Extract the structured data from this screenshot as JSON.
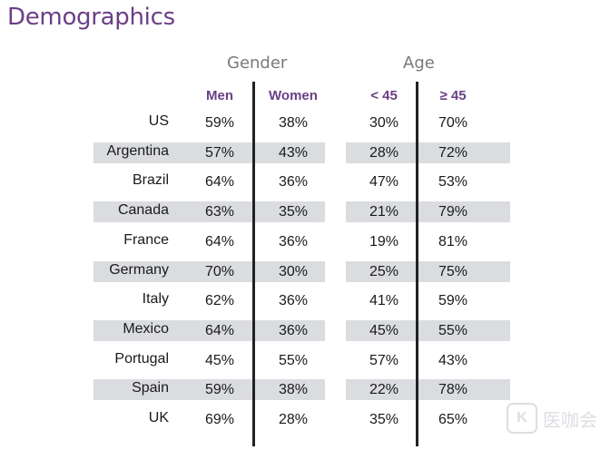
{
  "title": "Demographics",
  "groups": {
    "gender": "Gender",
    "age": "Age"
  },
  "columns": {
    "men": "Men",
    "women": "Women",
    "under45": "< 45",
    "over45": "≥ 45"
  },
  "watermark": {
    "icon": "K",
    "text": "医咖会"
  },
  "chart_data": {
    "type": "table",
    "title": "Demographics",
    "column_groups": [
      {
        "name": "Gender",
        "columns": [
          "Men",
          "Women"
        ]
      },
      {
        "name": "Age",
        "columns": [
          "< 45",
          "≥ 45"
        ]
      }
    ],
    "rows": [
      {
        "country": "US",
        "men": "59%",
        "women": "38%",
        "under45": "30%",
        "over45": "70%"
      },
      {
        "country": "Argentina",
        "men": "57%",
        "women": "43%",
        "under45": "28%",
        "over45": "72%"
      },
      {
        "country": "Brazil",
        "men": "64%",
        "women": "36%",
        "under45": "47%",
        "over45": "53%"
      },
      {
        "country": "Canada",
        "men": "63%",
        "women": "35%",
        "under45": "21%",
        "over45": "79%"
      },
      {
        "country": "France",
        "men": "64%",
        "women": "36%",
        "under45": "19%",
        "over45": "81%"
      },
      {
        "country": "Germany",
        "men": "70%",
        "women": "30%",
        "under45": "25%",
        "over45": "75%"
      },
      {
        "country": "Italy",
        "men": "62%",
        "women": "36%",
        "under45": "41%",
        "over45": "59%"
      },
      {
        "country": "Mexico",
        "men": "64%",
        "women": "36%",
        "under45": "45%",
        "over45": "55%"
      },
      {
        "country": "Portugal",
        "men": "45%",
        "women": "55%",
        "under45": "57%",
        "over45": "43%"
      },
      {
        "country": "Spain",
        "men": "59%",
        "women": "38%",
        "under45": "22%",
        "over45": "78%"
      },
      {
        "country": "UK",
        "men": "69%",
        "women": "28%",
        "under45": "35%",
        "over45": "65%"
      }
    ]
  }
}
